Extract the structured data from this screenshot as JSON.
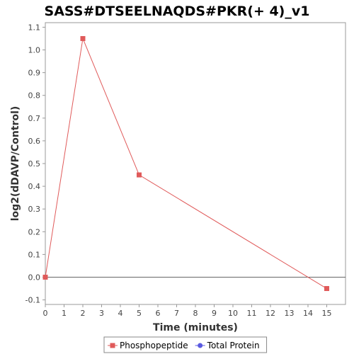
{
  "chart_data": {
    "type": "line",
    "title": "SASS#DTSEELNAQDS#PKR(+ 4)_v1",
    "xlabel": "Time (minutes)",
    "ylabel": "log2(dDAVP/Control)",
    "xlim": [
      0,
      16
    ],
    "ylim": [
      -0.12,
      1.12
    ],
    "x_ticks": [
      "0",
      "1",
      "2",
      "3",
      "4",
      "5",
      "6",
      "7",
      "8",
      "9",
      "10",
      "11",
      "12",
      "13",
      "14",
      "15"
    ],
    "y_ticks": [
      "-0.1",
      "0.0",
      "0.1",
      "0.2",
      "0.3",
      "0.4",
      "0.5",
      "0.6",
      "0.7",
      "0.8",
      "0.9",
      "1.0",
      "1.1"
    ],
    "grid": false,
    "zero_line": true,
    "legend_placement": "bottom",
    "series": [
      {
        "name": "Phosphopeptide",
        "color": "#e05a5a",
        "marker": "square",
        "x": [
          0,
          2,
          5,
          15
        ],
        "y": [
          0.0,
          1.05,
          0.45,
          -0.05
        ]
      },
      {
        "name": "Total Protein",
        "color": "#5a5ae0",
        "marker": "circle",
        "x": [],
        "y": []
      }
    ]
  }
}
